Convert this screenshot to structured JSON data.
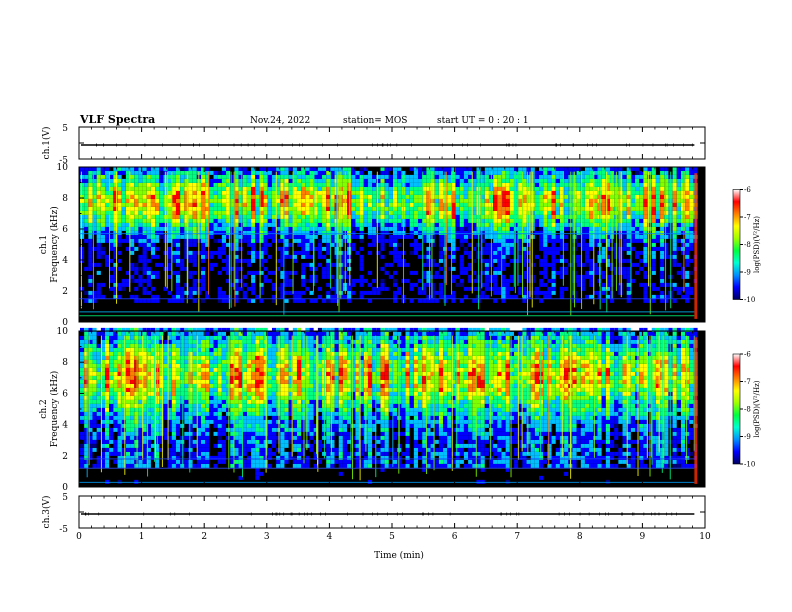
{
  "header": {
    "title": "VLF Spectra",
    "date": "Nov.24, 2022",
    "station": "station= MOS",
    "start": "start UT =  0 : 20 : 1"
  },
  "chart_data": [
    {
      "type": "line",
      "name": "ch1-waveform",
      "ylabel": "ch.1(V)",
      "yticks": [
        "5",
        "-5"
      ],
      "ylim": [
        -5,
        5
      ],
      "xlim": [
        0,
        10
      ]
    },
    {
      "type": "heatmap",
      "name": "ch1-spectrogram",
      "ylabel": "Frequency (kHz)",
      "channel_label": "ch.1",
      "yticks": [
        "0",
        "2",
        "4",
        "6",
        "8",
        "10"
      ],
      "ylim": [
        0,
        10
      ],
      "xlim": [
        0,
        10
      ],
      "colorbar": {
        "label": "log(PSD)(V²/Hz)",
        "ticks": [
          "-6",
          "-7",
          "-8",
          "-9",
          "-10"
        ],
        "range": [
          -10,
          -6
        ]
      }
    },
    {
      "type": "heatmap",
      "name": "ch2-spectrogram",
      "ylabel": "Frequency (kHz)",
      "channel_label": "ch.2",
      "yticks": [
        "0",
        "2",
        "4",
        "6",
        "8",
        "10"
      ],
      "ylim": [
        0,
        10
      ],
      "xlim": [
        0,
        10
      ],
      "colorbar": {
        "label": "log(PSD)(V²/Hz)",
        "ticks": [
          "-6",
          "-7",
          "-8",
          "-9",
          "-10"
        ],
        "range": [
          -10,
          -6
        ]
      }
    },
    {
      "type": "line",
      "name": "ch3-waveform",
      "ylabel": "ch.3(V)",
      "yticks": [
        "5",
        "-5"
      ],
      "ylim": [
        -5,
        5
      ],
      "xlim": [
        0,
        10
      ]
    }
  ],
  "xaxis": {
    "label": "Time  (min)",
    "ticks": [
      "0",
      "1",
      "2",
      "3",
      "4",
      "5",
      "6",
      "7",
      "8",
      "9",
      "10"
    ]
  },
  "colors": {
    "background": "#000000",
    "colormap": [
      "#000080",
      "#0000ff",
      "#00c0ff",
      "#00ff80",
      "#80ff00",
      "#ffff00",
      "#ff8000",
      "#ff0000",
      "#ffffff"
    ]
  }
}
